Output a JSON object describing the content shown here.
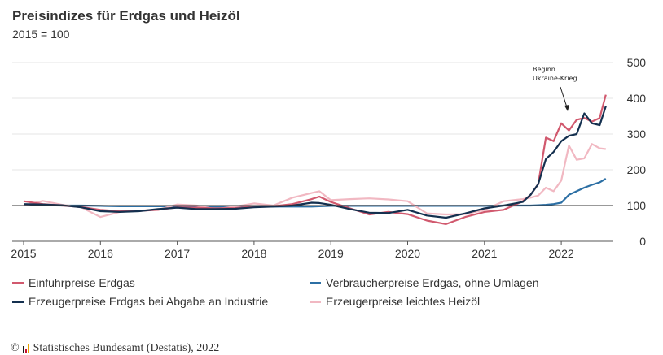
{
  "title": "Preisindizes für Erdgas und Heizöl",
  "subtitle": "2015 = 100",
  "source": {
    "copyright": "©",
    "text": "Statistisches Bundesamt (Destatis), 2022"
  },
  "chart_data": {
    "type": "line",
    "title": "Preisindizes für Erdgas und Heizöl",
    "subtitle": "2015 = 100",
    "xlabel": "",
    "ylabel": "",
    "xlim": [
      2015.0,
      2022.75
    ],
    "ylim": [
      0,
      500
    ],
    "x_ticks": [
      "2015",
      "2016",
      "2017",
      "2018",
      "2019",
      "2020",
      "2021",
      "2022"
    ],
    "y_ticks": [
      "0",
      "100",
      "200",
      "300",
      "400",
      "500"
    ],
    "y_axis_position": "right",
    "grid": true,
    "baseline": 100,
    "legend_position": "bottom",
    "annotation": {
      "text_line1": "Beginn",
      "text_line2": "Ukraine-Krieg",
      "x": 2022.15,
      "y": 360
    },
    "x": [
      2015.0,
      2015.25,
      2015.5,
      2015.75,
      2016.0,
      2016.25,
      2016.5,
      2016.75,
      2017.0,
      2017.25,
      2017.5,
      2017.75,
      2018.0,
      2018.25,
      2018.5,
      2018.75,
      2018.85,
      2019.0,
      2019.25,
      2019.5,
      2019.75,
      2020.0,
      2020.25,
      2020.5,
      2020.75,
      2021.0,
      2021.25,
      2021.5,
      2021.6,
      2021.7,
      2021.8,
      2021.9,
      2022.0,
      2022.1,
      2022.2,
      2022.3,
      2022.4,
      2022.5,
      2022.58
    ],
    "series": [
      {
        "name": "Einfuhrpreise Erdgas",
        "color": "#d1596e",
        "values": [
          112,
          104,
          100,
          96,
          88,
          84,
          85,
          88,
          95,
          94,
          92,
          93,
          97,
          98,
          104,
          118,
          125,
          110,
          92,
          75,
          82,
          76,
          58,
          48,
          68,
          82,
          88,
          112,
          130,
          160,
          290,
          280,
          330,
          310,
          340,
          345,
          335,
          345,
          410
        ]
      },
      {
        "name": "Verbraucherpreise Erdgas, ohne Umlagen",
        "color": "#2c6fa4",
        "values": [
          102,
          101,
          100,
          100,
          99,
          98,
          98,
          98,
          98,
          98,
          97,
          97,
          97,
          97,
          97,
          97,
          98,
          99,
          99,
          99,
          99,
          99,
          99,
          99,
          99,
          99,
          100,
          100,
          100,
          101,
          102,
          104,
          108,
          130,
          140,
          150,
          158,
          165,
          175
        ]
      },
      {
        "name": "Erzeugerpreise Erdgas bei Abgabe an Industrie",
        "color": "#14304f",
        "values": [
          104,
          103,
          101,
          95,
          84,
          82,
          84,
          90,
          94,
          90,
          90,
          91,
          95,
          97,
          100,
          108,
          107,
          102,
          90,
          80,
          79,
          88,
          72,
          66,
          78,
          92,
          100,
          110,
          130,
          160,
          230,
          250,
          280,
          295,
          300,
          358,
          330,
          325,
          378
        ]
      },
      {
        "name": "Erzeugerpreise leichtes Heizöl",
        "color": "#f1b8c2",
        "values": [
          100,
          113,
          102,
          95,
          68,
          82,
          86,
          88,
          103,
          100,
          90,
          97,
          106,
          100,
          122,
          135,
          140,
          115,
          118,
          120,
          117,
          112,
          78,
          75,
          76,
          88,
          112,
          118,
          122,
          128,
          150,
          140,
          170,
          268,
          228,
          232,
          272,
          260,
          258
        ]
      }
    ]
  }
}
